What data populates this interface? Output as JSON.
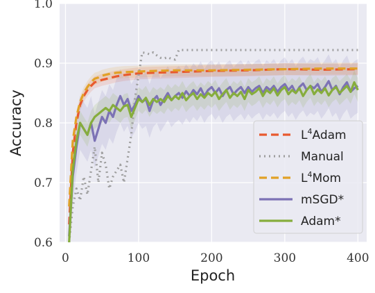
{
  "chart_data": {
    "type": "line",
    "title": "",
    "xlabel": "Epoch",
    "ylabel": "Accuracy",
    "xlim": [
      -8,
      412
    ],
    "ylim": [
      0.6,
      1.0
    ],
    "xticks": [
      0,
      100,
      200,
      300,
      400
    ],
    "yticks": [
      0.6,
      0.7,
      0.8,
      0.9,
      1.0
    ],
    "xtick_labels": [
      "0",
      "100",
      "200",
      "300",
      "400"
    ],
    "ytick_labels": [
      "0.6",
      "0.7",
      "0.8",
      "0.9",
      "1.0"
    ],
    "grid": true,
    "background": "#eaeaf2",
    "legend_position": "center-right",
    "series": [
      {
        "name": "L4Adam",
        "label_base": "L",
        "label_sup": "4",
        "label_rest": "Adam",
        "color": "#e8592e",
        "dash": "11,6",
        "band": 0.01,
        "x": [
          5,
          10,
          15,
          20,
          25,
          30,
          35,
          40,
          50,
          60,
          70,
          80,
          100,
          120,
          150,
          200,
          250,
          300,
          350,
          400
        ],
        "y": [
          0.63,
          0.75,
          0.8,
          0.83,
          0.845,
          0.855,
          0.862,
          0.868,
          0.872,
          0.875,
          0.878,
          0.88,
          0.883,
          0.884,
          0.885,
          0.887,
          0.888,
          0.89,
          0.889,
          0.89
        ]
      },
      {
        "name": "Manual",
        "color": "#9e9e9e",
        "dash": "2,5",
        "band": 0,
        "x": [
          5,
          10,
          15,
          20,
          25,
          30,
          35,
          40,
          45,
          50,
          55,
          60,
          65,
          70,
          75,
          80,
          85,
          90,
          95,
          100,
          105,
          110,
          115,
          120,
          125,
          130,
          135,
          140,
          145,
          150,
          155,
          160,
          200,
          250,
          300,
          350,
          400
        ],
        "y": [
          0.6,
          0.66,
          0.69,
          0.67,
          0.71,
          0.68,
          0.72,
          0.76,
          0.7,
          0.75,
          0.73,
          0.69,
          0.71,
          0.72,
          0.73,
          0.7,
          0.74,
          0.78,
          0.84,
          0.88,
          0.918,
          0.917,
          0.915,
          0.918,
          0.913,
          0.909,
          0.908,
          0.91,
          0.907,
          0.906,
          0.922,
          0.922,
          0.922,
          0.922,
          0.922,
          0.922,
          0.922
        ]
      },
      {
        "name": "L4Mom",
        "label_base": "L",
        "label_sup": "4",
        "label_rest": "Mom",
        "color": "#e1a126",
        "dash": "11,6",
        "band": 0.01,
        "x": [
          5,
          10,
          15,
          20,
          25,
          30,
          35,
          40,
          45,
          50,
          60,
          70,
          80,
          100,
          120,
          150,
          200,
          250,
          300,
          350,
          400
        ],
        "y": [
          0.66,
          0.77,
          0.81,
          0.835,
          0.85,
          0.86,
          0.868,
          0.874,
          0.876,
          0.879,
          0.882,
          0.884,
          0.885,
          0.886,
          0.887,
          0.888,
          0.888,
          0.889,
          0.89,
          0.891,
          0.891
        ]
      },
      {
        "name": "mSGD*",
        "color": "#7c72b5",
        "dash": "",
        "band": 0.045,
        "x": [
          5,
          10,
          15,
          20,
          25,
          30,
          35,
          40,
          45,
          50,
          55,
          60,
          65,
          70,
          75,
          80,
          85,
          90,
          95,
          100,
          105,
          110,
          115,
          120,
          125,
          130,
          135,
          140,
          145,
          150,
          155,
          160,
          165,
          170,
          175,
          180,
          185,
          190,
          195,
          200,
          205,
          210,
          215,
          220,
          225,
          230,
          235,
          240,
          245,
          250,
          255,
          260,
          265,
          270,
          275,
          280,
          285,
          290,
          295,
          300,
          305,
          310,
          315,
          320,
          325,
          330,
          335,
          340,
          345,
          350,
          355,
          360,
          365,
          370,
          375,
          380,
          385,
          390,
          395,
          400
        ],
        "y": [
          0.61,
          0.71,
          0.76,
          0.8,
          0.79,
          0.78,
          0.8,
          0.77,
          0.79,
          0.81,
          0.8,
          0.82,
          0.81,
          0.83,
          0.845,
          0.83,
          0.84,
          0.82,
          0.83,
          0.845,
          0.835,
          0.84,
          0.82,
          0.838,
          0.845,
          0.83,
          0.84,
          0.85,
          0.838,
          0.845,
          0.85,
          0.842,
          0.853,
          0.845,
          0.855,
          0.848,
          0.858,
          0.845,
          0.855,
          0.86,
          0.85,
          0.858,
          0.845,
          0.855,
          0.86,
          0.848,
          0.855,
          0.86,
          0.85,
          0.86,
          0.852,
          0.858,
          0.862,
          0.85,
          0.86,
          0.855,
          0.862,
          0.852,
          0.86,
          0.865,
          0.855,
          0.862,
          0.85,
          0.86,
          0.866,
          0.855,
          0.862,
          0.858,
          0.865,
          0.852,
          0.86,
          0.87,
          0.855,
          0.862,
          0.848,
          0.86,
          0.868,
          0.852,
          0.858,
          0.862
        ]
      },
      {
        "name": "Adam*",
        "color": "#86ad3c",
        "dash": "",
        "band": 0.02,
        "x": [
          5,
          10,
          15,
          20,
          25,
          30,
          35,
          40,
          45,
          50,
          55,
          60,
          65,
          70,
          75,
          80,
          85,
          90,
          95,
          100,
          105,
          110,
          115,
          120,
          125,
          130,
          135,
          140,
          145,
          150,
          155,
          160,
          165,
          170,
          175,
          180,
          185,
          190,
          195,
          200,
          205,
          210,
          215,
          220,
          225,
          230,
          235,
          240,
          245,
          250,
          255,
          260,
          265,
          270,
          275,
          280,
          285,
          290,
          295,
          300,
          305,
          310,
          315,
          320,
          325,
          330,
          335,
          340,
          345,
          350,
          355,
          360,
          365,
          370,
          375,
          380,
          385,
          390,
          395,
          400
        ],
        "y": [
          0.6,
          0.72,
          0.77,
          0.8,
          0.79,
          0.78,
          0.8,
          0.81,
          0.815,
          0.82,
          0.825,
          0.82,
          0.83,
          0.825,
          0.82,
          0.828,
          0.83,
          0.81,
          0.825,
          0.84,
          0.835,
          0.842,
          0.83,
          0.84,
          0.835,
          0.84,
          0.835,
          0.845,
          0.838,
          0.845,
          0.84,
          0.85,
          0.838,
          0.845,
          0.85,
          0.84,
          0.848,
          0.842,
          0.85,
          0.845,
          0.852,
          0.84,
          0.848,
          0.855,
          0.842,
          0.85,
          0.845,
          0.852,
          0.84,
          0.855,
          0.848,
          0.852,
          0.858,
          0.845,
          0.855,
          0.85,
          0.858,
          0.846,
          0.855,
          0.86,
          0.848,
          0.855,
          0.85,
          0.858,
          0.845,
          0.855,
          0.862,
          0.848,
          0.856,
          0.85,
          0.858,
          0.846,
          0.855,
          0.86,
          0.85,
          0.856,
          0.862,
          0.852,
          0.868,
          0.855
        ]
      }
    ]
  }
}
